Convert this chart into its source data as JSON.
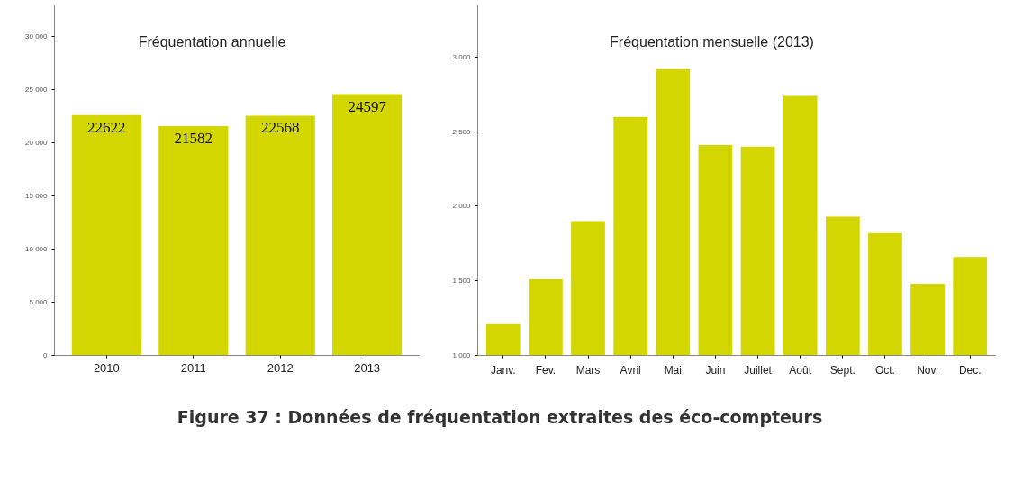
{
  "chart_data": [
    {
      "type": "bar",
      "title": "Fréquentation annuelle",
      "categories": [
        "2010",
        "2011",
        "2012",
        "2013"
      ],
      "values": [
        22622,
        21582,
        22568,
        24597
      ],
      "color": "#d4d600",
      "data_labels": true,
      "ylim": [
        0,
        33000
      ],
      "yticks": [
        0,
        {
          "value": 5000,
          "label": "5 000"
        },
        {
          "value": 10000,
          "label": "10 000"
        },
        {
          "value": 15000,
          "label": "15 000"
        },
        {
          "value": 20000,
          "label": "20 000"
        },
        {
          "value": 25000,
          "label": "25 000"
        },
        {
          "value": 30000,
          "label": "30 000"
        }
      ],
      "grid": false,
      "annotations": [
        "Figure 37 : Données de fréquentation extraites des éco-compteurs"
      ]
    },
    {
      "type": "bar",
      "title": "Fréquentation mensuelle (2013)",
      "categories": [
        "Janv.",
        "Fev.",
        "Mars",
        "Avril",
        "Mai",
        "Juin",
        "Juillet",
        "Août",
        "Sept.",
        "Oct.",
        "Nov.",
        "Dec."
      ],
      "values": [
        1210,
        1510,
        1900,
        2600,
        2920,
        2410,
        2400,
        2740,
        1930,
        1820,
        1480,
        1660
      ],
      "color": "#d4d600",
      "ylim": [
        1000,
        3350
      ],
      "yticks": [
        {
          "value": 1000,
          "label": "1 000"
        },
        {
          "value": 1500,
          "label": "1 500"
        },
        {
          "value": 2000,
          "label": "2 000"
        },
        {
          "value": 2500,
          "label": "2 500"
        },
        {
          "value": 3000,
          "label": "3 000"
        }
      ],
      "grid": false
    }
  ]
}
